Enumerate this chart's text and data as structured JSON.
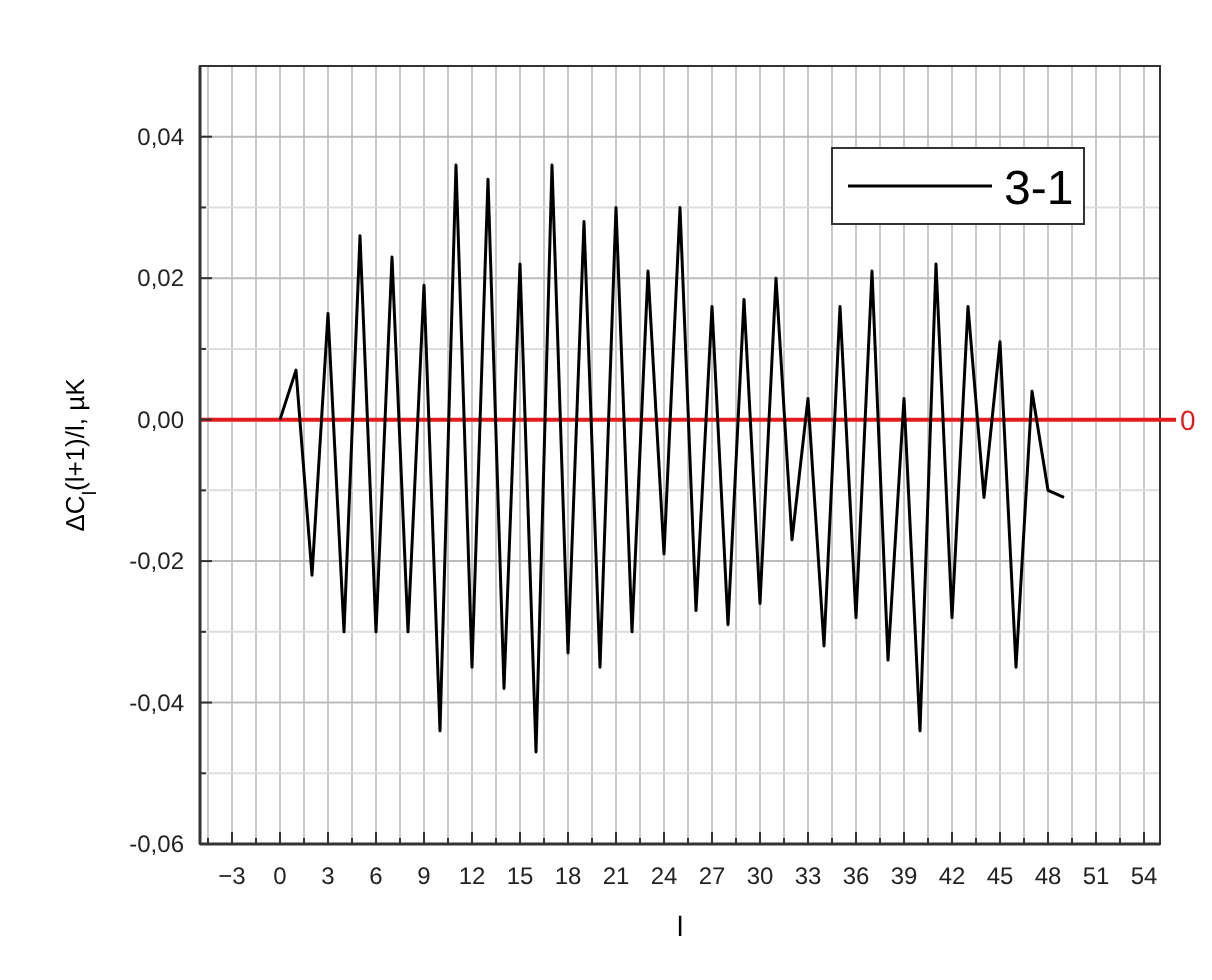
{
  "chart_data": {
    "type": "line",
    "xlabel": "l",
    "ylabel": "ΔC$_{l}$(l+1)/l, µK",
    "x": [
      0,
      1,
      2,
      3,
      4,
      5,
      6,
      7,
      8,
      9,
      10,
      11,
      12,
      13,
      14,
      15,
      16,
      17,
      18,
      19,
      20,
      21,
      22,
      23,
      24,
      25,
      26,
      27,
      28,
      29,
      30,
      31,
      32,
      33,
      34,
      35,
      36,
      37,
      38,
      39,
      40,
      41,
      42,
      43,
      44,
      45,
      46,
      47,
      48,
      49
    ],
    "series": [
      {
        "name": "3-1",
        "color": "#000000",
        "values": [
          0.0,
          0.007,
          -0.022,
          0.015,
          -0.03,
          0.026,
          -0.03,
          0.023,
          -0.03,
          0.019,
          -0.044,
          0.036,
          -0.035,
          0.034,
          -0.038,
          0.022,
          -0.047,
          0.036,
          -0.033,
          0.028,
          -0.035,
          0.03,
          -0.03,
          0.021,
          -0.019,
          0.03,
          -0.027,
          0.016,
          -0.029,
          0.017,
          -0.026,
          0.02,
          -0.017,
          0.003,
          -0.032,
          0.016,
          -0.028,
          0.021,
          -0.034,
          0.003,
          -0.044,
          0.022,
          -0.028,
          0.016,
          -0.011,
          0.011,
          -0.035,
          0.004,
          -0.01,
          -0.011
        ]
      }
    ],
    "xlim": [
      -5,
      55
    ],
    "xticks": [
      {
        "value": -4.5,
        "label": null
      },
      -3,
      {
        "value": -1.5,
        "label": null
      },
      0,
      {
        "value": 1.5,
        "label": null
      },
      3,
      {
        "value": 4.5,
        "label": null
      },
      6,
      {
        "value": 7.5,
        "label": null
      },
      9,
      {
        "value": 10.5,
        "label": null
      },
      12,
      {
        "value": 13.5,
        "label": null
      },
      15,
      {
        "value": 16.5,
        "label": null
      },
      18,
      {
        "value": 19.5,
        "label": null
      },
      21,
      {
        "value": 22.5,
        "label": null
      },
      24,
      {
        "value": 25.5,
        "label": null
      },
      27,
      {
        "value": 28.5,
        "label": null
      },
      30,
      {
        "value": 31.5,
        "label": null
      },
      33,
      {
        "value": 34.5,
        "label": null
      },
      36,
      {
        "value": 37.5,
        "label": null
      },
      39,
      {
        "value": 40.5,
        "label": null
      },
      42,
      {
        "value": 43.5,
        "label": null
      },
      45,
      {
        "value": 46.5,
        "label": null
      },
      48,
      {
        "value": 49.5,
        "label": null
      },
      51,
      {
        "value": 52.5,
        "label": null
      },
      54
    ],
    "ylim": [
      -0.06,
      0.05
    ],
    "yticks": [
      {
        "value": -0.06,
        "label": "-0,06"
      },
      {
        "value": -0.05,
        "label": null
      },
      {
        "value": -0.04,
        "label": "-0,04"
      },
      {
        "value": -0.03,
        "label": null
      },
      {
        "value": -0.02,
        "label": "-0,02"
      },
      {
        "value": -0.01,
        "label": null
      },
      {
        "value": 0,
        "label": "0,00"
      },
      {
        "value": 0.01,
        "label": null
      },
      {
        "value": 0.02,
        "label": "0,02"
      },
      {
        "value": 0.03,
        "label": null
      },
      {
        "value": 0.04,
        "label": "0,04"
      }
    ],
    "ref_lines": [
      {
        "axis": "y",
        "value": 0,
        "label": "0",
        "color": "#e41a1c"
      }
    ],
    "grid": true,
    "legend": "top right",
    "line_style": "solid",
    "marker": "none"
  }
}
